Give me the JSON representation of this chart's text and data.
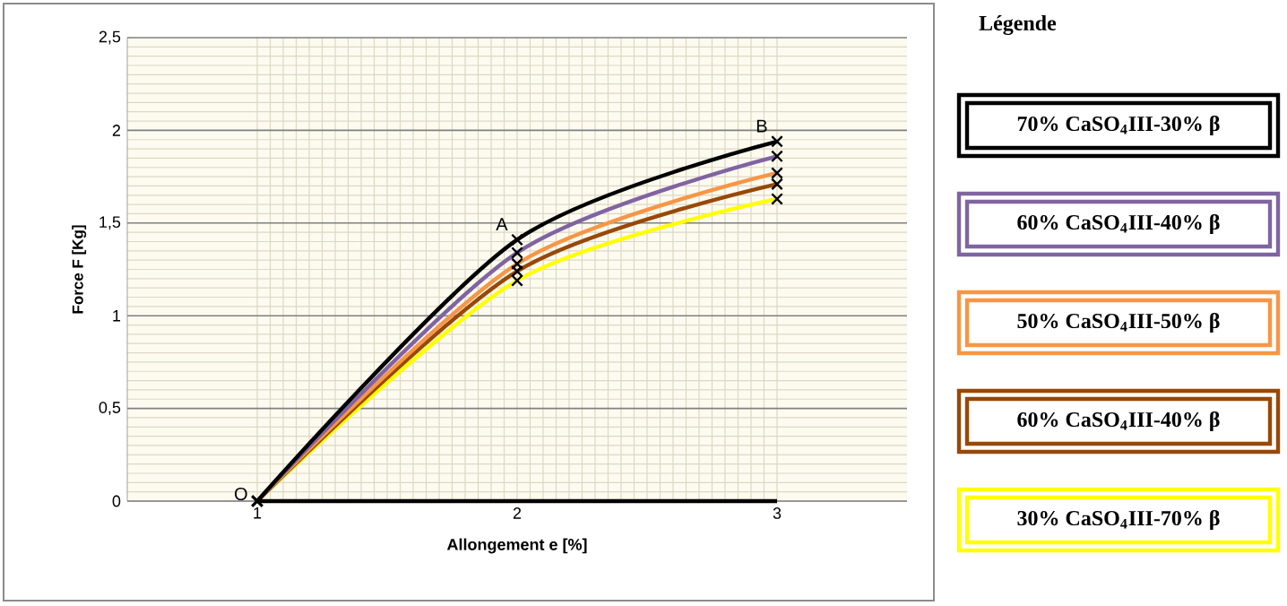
{
  "chart_data": {
    "type": "line",
    "xlabel": "Allongement e [%]",
    "ylabel": "Force F [Kg]",
    "legend_title": "Légende",
    "categories": [
      "1",
      "2",
      "3"
    ],
    "series": [
      {
        "color": "#000000",
        "values": [
          0,
          0,
          0
        ],
        "marker": "none"
      },
      {
        "name": "70% CaSO$_{4}$III-30% β",
        "color": "#000000",
        "values": [
          0,
          1.41,
          1.94
        ]
      },
      {
        "name": "60% CaSO$_{4}$III-40% β",
        "color": "#8064a2",
        "values": [
          0,
          1.34,
          1.86
        ]
      },
      {
        "name": "50% CaSO$_{4}$III-50% β",
        "color": "#f79646",
        "values": [
          0,
          1.28,
          1.77
        ]
      },
      {
        "name": "60% CaSO$_{4}$III-40% β",
        "color": "#984807",
        "values": [
          0,
          1.24,
          1.71
        ]
      },
      {
        "name": "30% CaSO$_{4}$III-70% β",
        "color": "#ffff00",
        "values": [
          0,
          1.19,
          1.63
        ]
      }
    ],
    "ylim": [
      0,
      2.5
    ],
    "yticks": [
      0,
      {
        "value": 0.5,
        "label": "0,5"
      },
      1,
      {
        "value": 1.5,
        "label": "1,5"
      },
      2,
      {
        "value": 2.5,
        "label": "2,5"
      }
    ],
    "annotations": [
      {
        "text": "O",
        "x": "1",
        "y": 0
      },
      {
        "text": "A",
        "x": "2",
        "y": 1.41
      },
      {
        "text": "B",
        "x": "3",
        "y": 1.94
      }
    ],
    "grid": true,
    "legend": "right",
    "marker": "cross",
    "line_style": "solid"
  }
}
